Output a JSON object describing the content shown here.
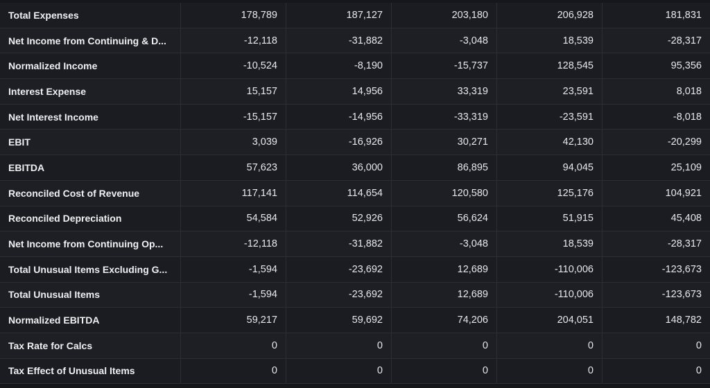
{
  "rows": [
    {
      "label": "Total Expenses",
      "values": [
        "178,789",
        "187,127",
        "203,180",
        "206,928",
        "181,831"
      ]
    },
    {
      "label": "Net Income from Continuing & D...",
      "values": [
        "-12,118",
        "-31,882",
        "-3,048",
        "18,539",
        "-28,317"
      ]
    },
    {
      "label": "Normalized Income",
      "values": [
        "-10,524",
        "-8,190",
        "-15,737",
        "128,545",
        "95,356"
      ]
    },
    {
      "label": "Interest Expense",
      "values": [
        "15,157",
        "14,956",
        "33,319",
        "23,591",
        "8,018"
      ]
    },
    {
      "label": "Net Interest Income",
      "values": [
        "-15,157",
        "-14,956",
        "-33,319",
        "-23,591",
        "-8,018"
      ]
    },
    {
      "label": "EBIT",
      "values": [
        "3,039",
        "-16,926",
        "30,271",
        "42,130",
        "-20,299"
      ]
    },
    {
      "label": "EBITDA",
      "values": [
        "57,623",
        "36,000",
        "86,895",
        "94,045",
        "25,109"
      ]
    },
    {
      "label": "Reconciled Cost of Revenue",
      "values": [
        "117,141",
        "114,654",
        "120,580",
        "125,176",
        "104,921"
      ]
    },
    {
      "label": "Reconciled Depreciation",
      "values": [
        "54,584",
        "52,926",
        "56,624",
        "51,915",
        "45,408"
      ]
    },
    {
      "label": "Net Income from Continuing Op...",
      "values": [
        "-12,118",
        "-31,882",
        "-3,048",
        "18,539",
        "-28,317"
      ]
    },
    {
      "label": "Total Unusual Items Excluding G...",
      "values": [
        "-1,594",
        "-23,692",
        "12,689",
        "-110,006",
        "-123,673"
      ]
    },
    {
      "label": "Total Unusual Items",
      "values": [
        "-1,594",
        "-23,692",
        "12,689",
        "-110,006",
        "-123,673"
      ]
    },
    {
      "label": "Normalized EBITDA",
      "values": [
        "59,217",
        "59,692",
        "74,206",
        "204,051",
        "148,782"
      ]
    },
    {
      "label": "Tax Rate for Calcs",
      "values": [
        "0",
        "0",
        "0",
        "0",
        "0"
      ]
    },
    {
      "label": "Tax Effect of Unusual Items",
      "values": [
        "0",
        "0",
        "0",
        "0",
        "0"
      ]
    }
  ]
}
